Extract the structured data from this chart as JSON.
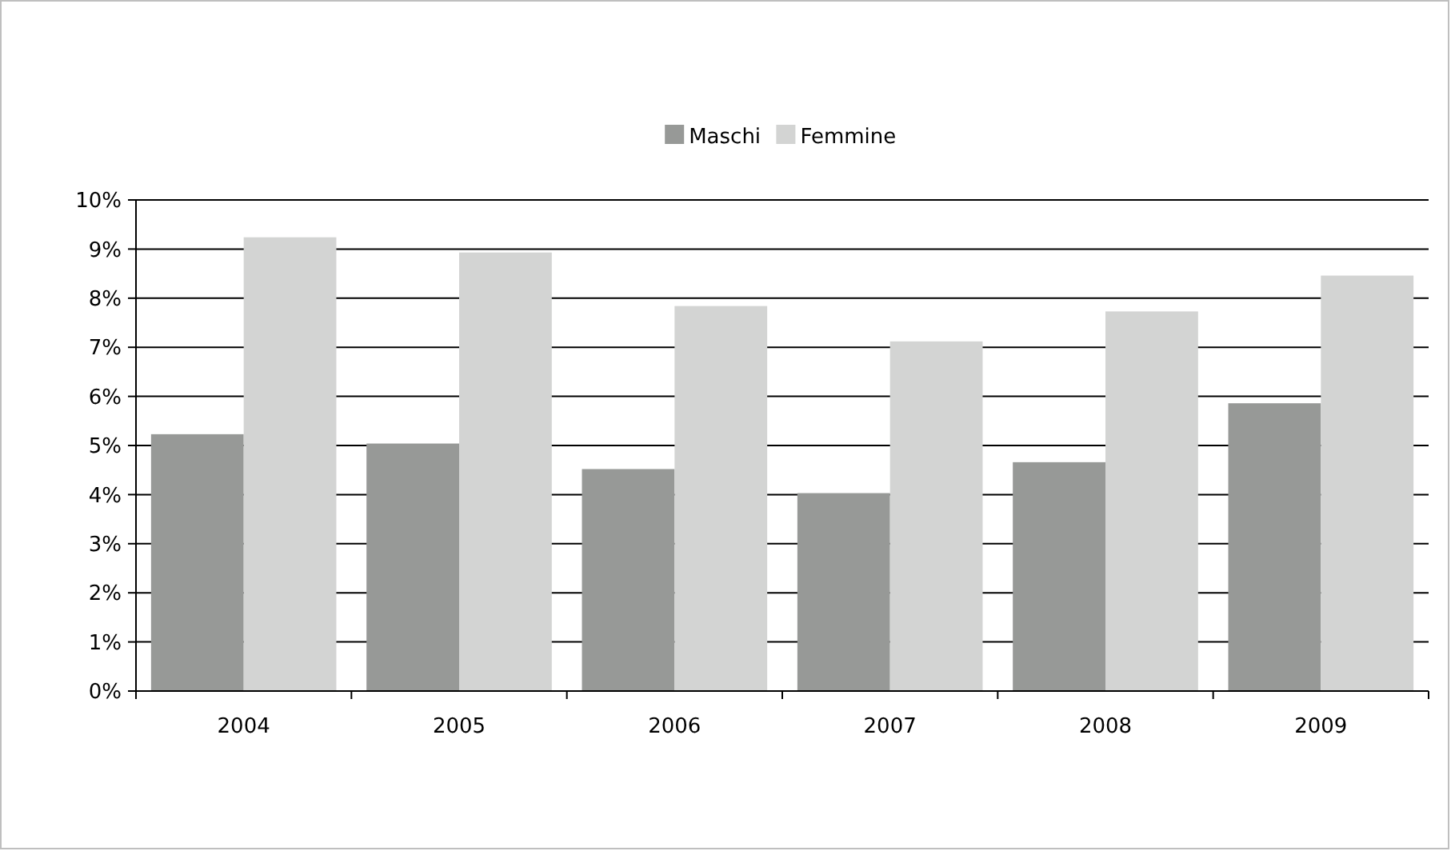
{
  "chart_data": {
    "type": "bar",
    "categories": [
      "2004",
      "2005",
      "2006",
      "2007",
      "2008",
      "2009"
    ],
    "series": [
      {
        "name": "Maschi",
        "color": "#979997",
        "values": [
          5.23,
          5.04,
          4.52,
          4.03,
          4.66,
          5.86
        ]
      },
      {
        "name": "Femmine",
        "color": "#d3d4d3",
        "values": [
          9.24,
          8.93,
          7.84,
          7.12,
          7.73,
          8.46
        ]
      }
    ],
    "ylim": [
      0,
      10
    ],
    "yticks": [
      {
        "value": 0,
        "label": "0%"
      },
      {
        "value": 1,
        "label": "1%"
      },
      {
        "value": 2,
        "label": "2%"
      },
      {
        "value": 3,
        "label": "3%"
      },
      {
        "value": 4,
        "label": "4%"
      },
      {
        "value": 5,
        "label": "5%"
      },
      {
        "value": 6,
        "label": "6%"
      },
      {
        "value": 7,
        "label": "7%"
      },
      {
        "value": 8,
        "label": "8%"
      },
      {
        "value": 9,
        "label": "9%"
      },
      {
        "value": 10,
        "label": "10%"
      }
    ],
    "grid": "y",
    "legend": "top"
  }
}
